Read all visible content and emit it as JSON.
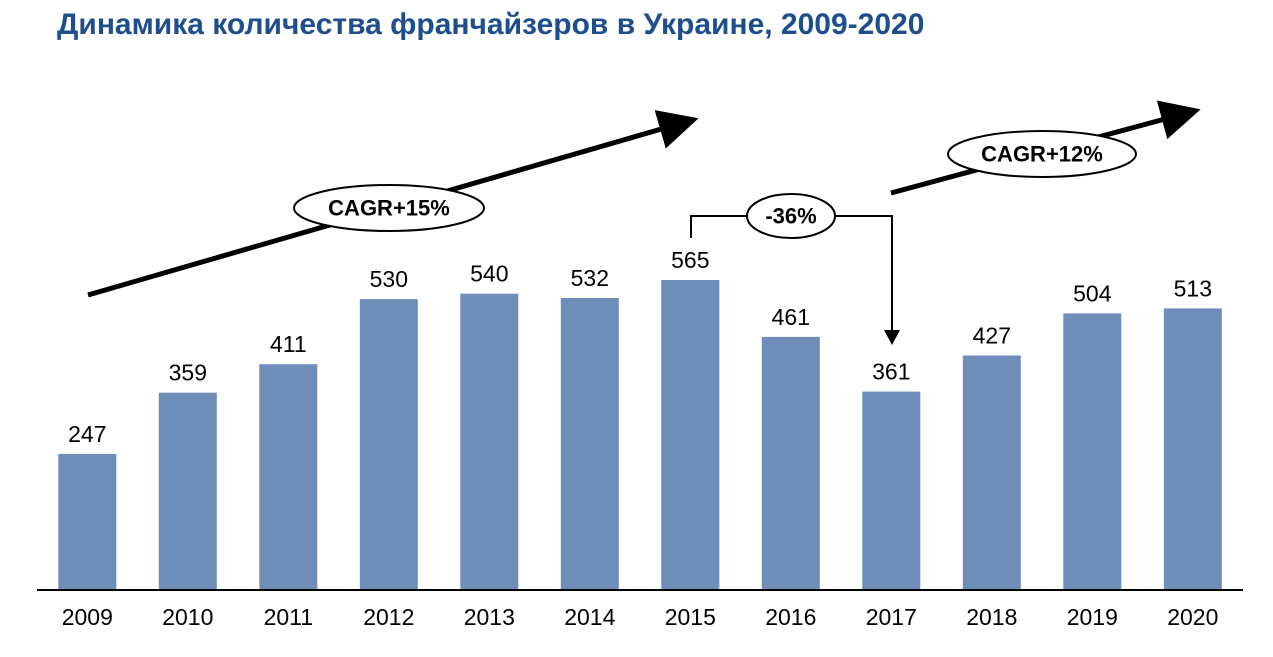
{
  "title": "Динамика количества франчайзеров в Украине, 2009-2020",
  "chart_data": {
    "type": "bar",
    "categories": [
      "2009",
      "2010",
      "2011",
      "2012",
      "2013",
      "2014",
      "2015",
      "2016",
      "2017",
      "2018",
      "2019",
      "2020"
    ],
    "values": [
      247,
      359,
      411,
      530,
      540,
      532,
      565,
      461,
      361,
      427,
      504,
      513
    ],
    "ylim": [
      0,
      565
    ],
    "bar_color": "#6e8db8",
    "axis_color": "#000000",
    "grid": false,
    "annotations": {
      "cagr_left": "CAGR+15%",
      "drop": "-36%",
      "cagr_right": "CAGR+12%"
    }
  }
}
